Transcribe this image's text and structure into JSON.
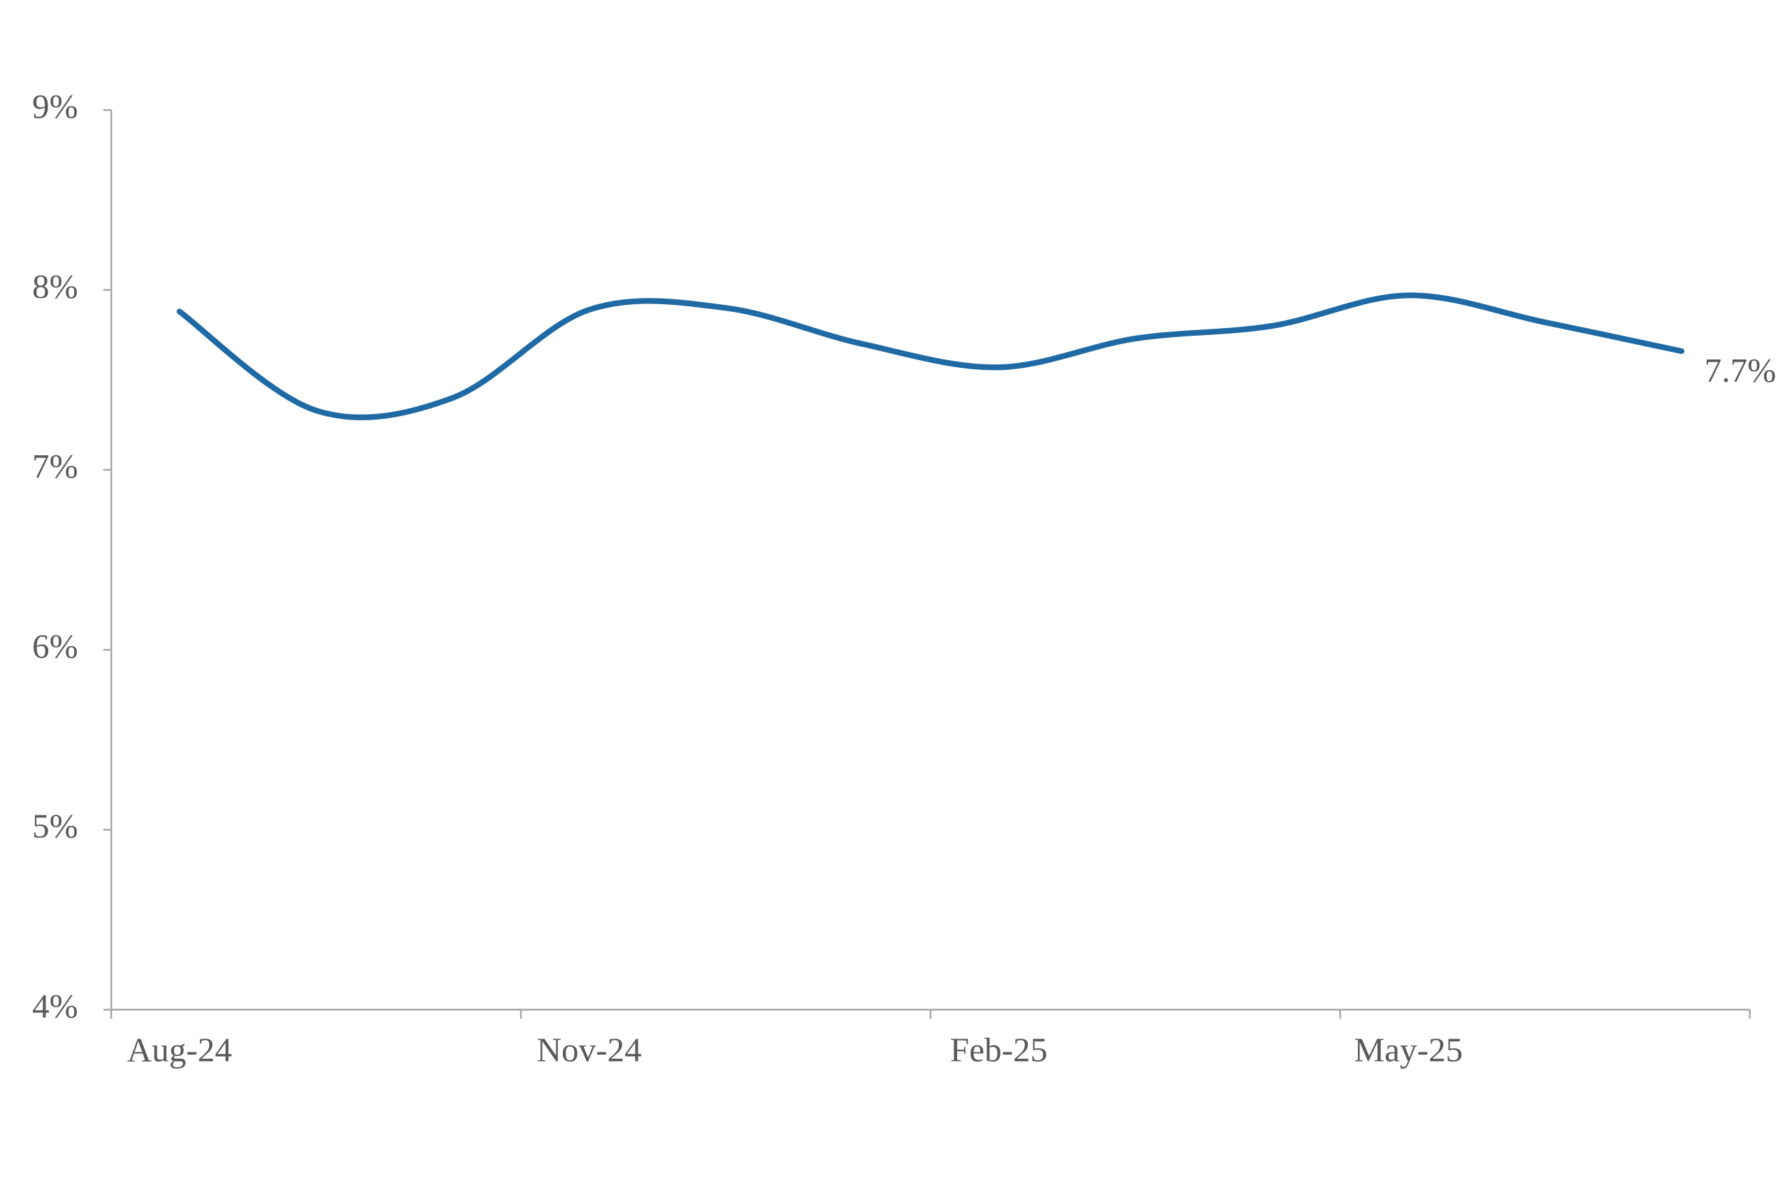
{
  "chart_data": {
    "type": "line",
    "categories": [
      "Aug-24",
      null,
      null,
      "Nov-24",
      null,
      null,
      "Feb-25",
      null,
      null,
      "May-25",
      null,
      null
    ],
    "series": [
      {
        "color": "#1f6aa5",
        "values": [
          7.88,
          7.33,
          7.4,
          7.89,
          7.9,
          7.7,
          7.57,
          7.73,
          7.8,
          7.97,
          7.82,
          7.66
        ],
        "value_labels": [
          null,
          null,
          null,
          null,
          null,
          null,
          null,
          null,
          null,
          null,
          null,
          "7.7%"
        ]
      }
    ],
    "ylim": [
      4,
      9
    ],
    "yticks": [
      {
        "value": 4,
        "label": "4%"
      },
      {
        "value": 5,
        "label": "5%"
      },
      {
        "value": 6,
        "label": "6%"
      },
      {
        "value": 7,
        "label": "7%"
      },
      {
        "value": 8,
        "label": "8%"
      },
      {
        "value": 9,
        "label": "9%"
      }
    ],
    "grid": false
  }
}
